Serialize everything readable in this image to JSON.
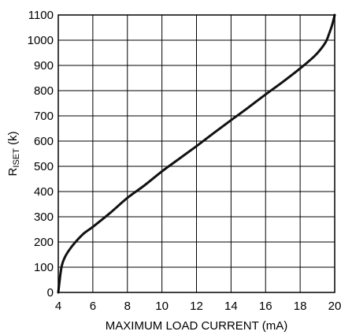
{
  "chart_data": {
    "type": "line",
    "title": "",
    "xlabel": "MAXIMUM LOAD CURRENT (mA)",
    "ylabel": {
      "main": "R",
      "sub": "ISET",
      "suffix": " (k)"
    },
    "xlim": [
      4,
      20
    ],
    "ylim": [
      0,
      1100
    ],
    "x_ticks": [
      4,
      6,
      8,
      10,
      12,
      14,
      16,
      18,
      20
    ],
    "y_ticks": [
      0,
      100,
      200,
      300,
      400,
      500,
      600,
      700,
      800,
      900,
      1000,
      1100
    ],
    "grid": true,
    "series": [
      {
        "x": [
          4.0,
          4.1,
          4.2,
          4.35,
          4.6,
          5.0,
          5.5,
          6.0,
          7.0,
          8.0,
          9.0,
          10.0,
          11.0,
          12.0,
          13.0,
          14.0,
          15.0,
          16.0,
          17.0,
          18.0,
          18.8,
          19.2,
          19.5,
          19.7,
          19.85,
          20.0
        ],
        "y": [
          0,
          60,
          105,
          135,
          165,
          200,
          235,
          260,
          315,
          375,
          425,
          480,
          530,
          580,
          632,
          683,
          733,
          785,
          835,
          888,
          935,
          965,
          995,
          1030,
          1060,
          1100
        ]
      }
    ]
  }
}
